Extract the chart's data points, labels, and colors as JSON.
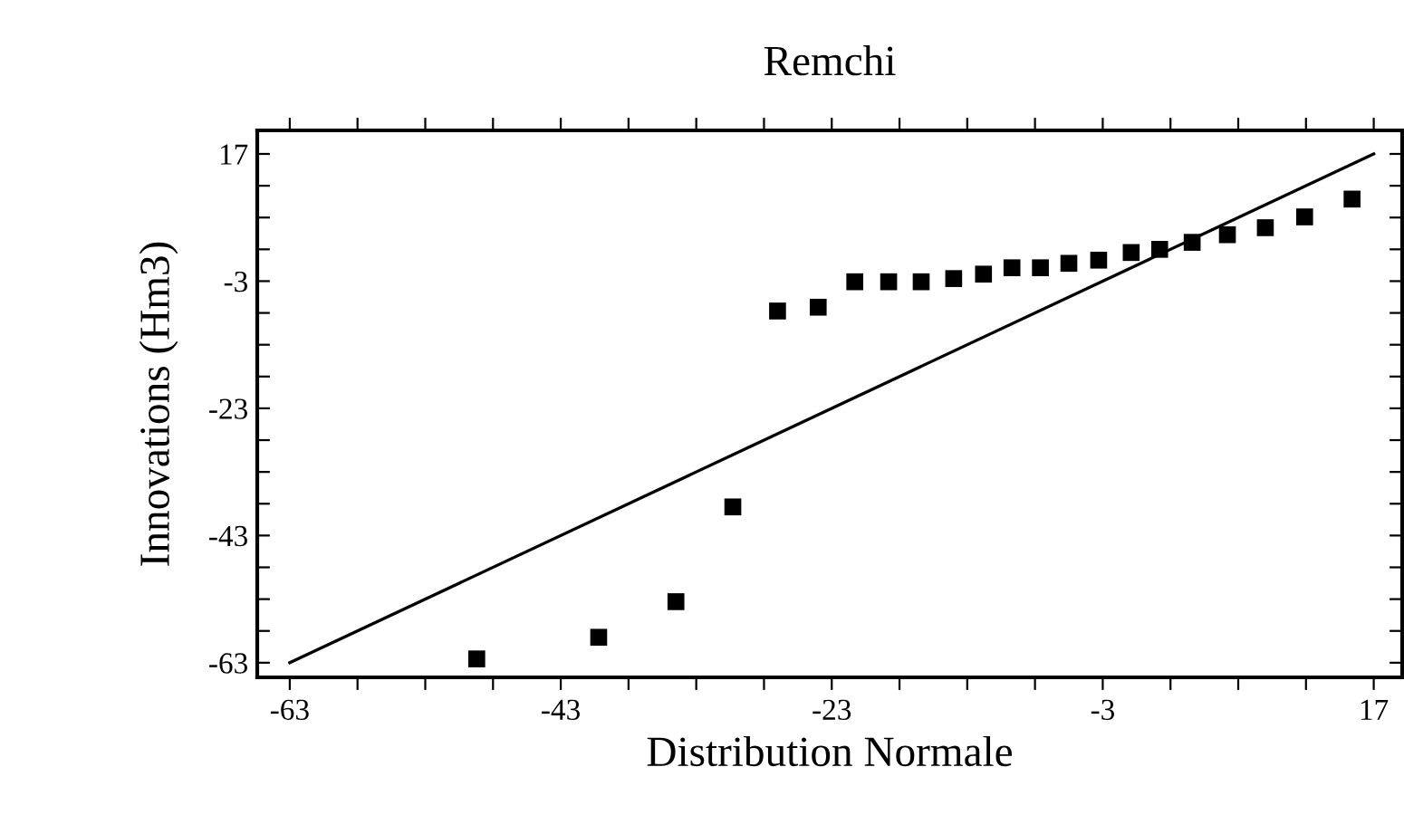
{
  "chart_data": {
    "type": "scatter",
    "title": "Remchi",
    "xlabel": "Distribution Normale",
    "ylabel": "Innovations (Hm3)",
    "grid": false,
    "legend": false,
    "series": [
      {
        "color": "#000000",
        "marker": "square",
        "x": [
          -49.2,
          -40.2,
          -34.5,
          -30.3,
          -27.0,
          -24.0,
          -21.3,
          -18.8,
          -16.4,
          -14.0,
          -11.8,
          -9.7,
          -7.6,
          -5.5,
          -3.3,
          -0.9,
          1.2,
          3.6,
          6.2,
          9.0,
          11.9,
          15.4
        ],
        "values": [
          -62.4,
          -59.0,
          -53.4,
          -38.5,
          -7.7,
          -7.1,
          -3.1,
          -3.1,
          -3.1,
          -2.6,
          -1.9,
          -0.9,
          -0.9,
          -0.2,
          0.3,
          1.5,
          2.0,
          3.1,
          4.3,
          5.4,
          7.1,
          9.9
        ]
      },
      {
        "type": "line",
        "color": "#000000",
        "line_style": "solid",
        "marker": "none",
        "x": [
          -63,
          17
        ],
        "values": [
          -63,
          17
        ]
      }
    ],
    "xlim": [
      -65.4,
      19.1
    ],
    "ylim": [
      -65.3,
      20.7
    ],
    "xticks": [
      -63,
      {
        "value": -58,
        "label": null
      },
      {
        "value": -53,
        "label": null
      },
      {
        "value": -48,
        "label": null
      },
      -43,
      {
        "value": -38,
        "label": null
      },
      {
        "value": -33,
        "label": null
      },
      {
        "value": -28,
        "label": null
      },
      -23,
      {
        "value": -18,
        "label": null
      },
      {
        "value": -13,
        "label": null
      },
      {
        "value": -8,
        "label": null
      },
      -3,
      {
        "value": 2,
        "label": null
      },
      {
        "value": 7,
        "label": null
      },
      {
        "value": 12,
        "label": null
      },
      17
    ],
    "yticks": [
      -63,
      {
        "value": -58,
        "label": null
      },
      {
        "value": -53,
        "label": null
      },
      {
        "value": -48,
        "label": null
      },
      -43,
      {
        "value": -38,
        "label": null
      },
      {
        "value": -33,
        "label": null
      },
      {
        "value": -28,
        "label": null
      },
      -23,
      {
        "value": -18,
        "label": null
      },
      {
        "value": -13,
        "label": null
      },
      {
        "value": -8,
        "label": null
      },
      -3,
      {
        "value": 2,
        "label": null
      },
      {
        "value": 7,
        "label": null
      },
      {
        "value": 12,
        "label": null
      },
      17
    ]
  }
}
